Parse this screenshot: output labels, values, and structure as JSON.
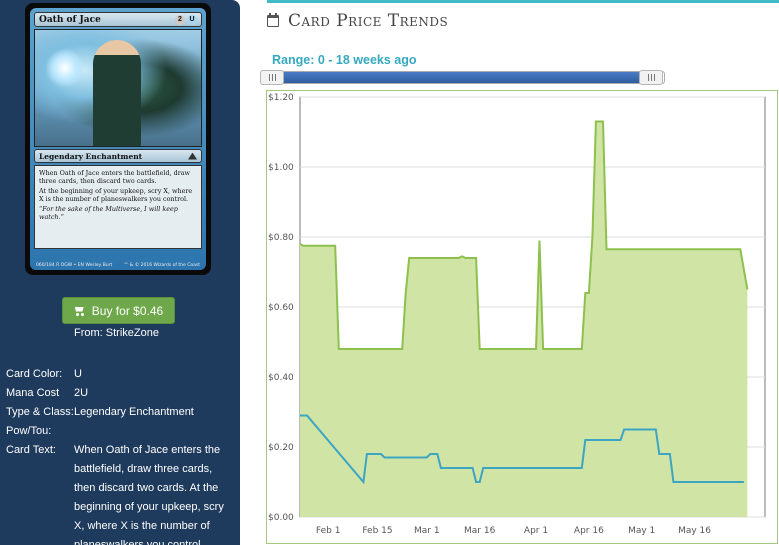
{
  "card": {
    "name": "Oath of Jace",
    "mana": [
      "2",
      "U"
    ],
    "type_line": "Legendary Enchantment",
    "rules_text": [
      "When Oath of Jace enters the battlefield, draw three cards, then discard two cards.",
      "At the beginning of your upkeep, scry X, where X is the number of planeswalkers you control."
    ],
    "flavor_text": "“For the sake of the Multiverse, I will keep watch.”",
    "footer_left": "060/184 R  OGW • EN  Wesley Burt",
    "footer_right": "™ & © 2016 Wizards of the Coast"
  },
  "purchase": {
    "buy_label": "Buy for $0.46",
    "from_label": "From: StrikeZone"
  },
  "details": [
    {
      "label": "Card Color:",
      "value": "U"
    },
    {
      "label": "Mana Cost",
      "value": "2U"
    },
    {
      "label": "Type & Class:",
      "value": "Legendary Enchantment"
    },
    {
      "label": "Pow/Tou:",
      "value": ""
    },
    {
      "label": "Card Text:",
      "value": "When Oath of Jace enters the battlefield, draw three cards, then discard two cards. At the beginning of your upkeep, scry X, where X is the number of planeswalkers you control."
    }
  ],
  "header": {
    "title": "Card Price Trends",
    "icon": "calendar-icon"
  },
  "range": {
    "label": "Range: 0 - 18 weeks ago",
    "start_weeks": 0,
    "end_weeks": 18
  },
  "colors": {
    "panel_bg": "#1e3a5c",
    "accent": "#40b8c6",
    "range_text": "#35a9c0",
    "buy_button": "#6ea84b",
    "area_fill": "#d0e4a6",
    "area_line": "#8ec04e",
    "low_line": "#3ba5c2"
  },
  "chart_data": {
    "type": "line",
    "title": "",
    "xlabel": "",
    "ylabel": "",
    "x_domain": [
      0,
      132
    ],
    "ylim": [
      0,
      1.2
    ],
    "y_ticks": [
      {
        "value": 0.0,
        "label": "$0.00"
      },
      {
        "value": 0.2,
        "label": "$0.20"
      },
      {
        "value": 0.4,
        "label": "$0.40"
      },
      {
        "value": 0.6,
        "label": "$0.60"
      },
      {
        "value": 0.8,
        "label": "$0.80"
      },
      {
        "value": 1.0,
        "label": "$1.00"
      },
      {
        "value": 1.2,
        "label": "$1.20"
      }
    ],
    "x_ticks": [
      {
        "x": 8,
        "label": "Feb 1"
      },
      {
        "x": 22,
        "label": "Feb 15"
      },
      {
        "x": 36,
        "label": "Mar 1"
      },
      {
        "x": 51,
        "label": "Mar 16"
      },
      {
        "x": 67,
        "label": "Apr 1"
      },
      {
        "x": 82,
        "label": "Apr 16"
      },
      {
        "x": 97,
        "label": "May 1"
      },
      {
        "x": 112,
        "label": "May 16"
      }
    ],
    "grid": {
      "horizontal": true,
      "vertical": false
    },
    "series": [
      {
        "role": "high",
        "style": "area",
        "points": [
          [
            0,
            0.78
          ],
          [
            1,
            0.775
          ],
          [
            10,
            0.775
          ],
          [
            11,
            0.48
          ],
          [
            29,
            0.48
          ],
          [
            30,
            0.64
          ],
          [
            31,
            0.74
          ],
          [
            45,
            0.74
          ],
          [
            46,
            0.745
          ],
          [
            47,
            0.74
          ],
          [
            50,
            0.74
          ],
          [
            51,
            0.48
          ],
          [
            67,
            0.48
          ],
          [
            68,
            0.79
          ],
          [
            69,
            0.48
          ],
          [
            80,
            0.48
          ],
          [
            81,
            0.64
          ],
          [
            82,
            0.64
          ],
          [
            83,
            0.8
          ],
          [
            84,
            1.13
          ],
          [
            86,
            1.13
          ],
          [
            87,
            0.765
          ],
          [
            125,
            0.765
          ],
          [
            127,
            0.65
          ]
        ]
      },
      {
        "role": "low",
        "style": "line",
        "points": [
          [
            0,
            0.29
          ],
          [
            2,
            0.29
          ],
          [
            18,
            0.1
          ],
          [
            19,
            0.18
          ],
          [
            23,
            0.18
          ],
          [
            24,
            0.17
          ],
          [
            36,
            0.17
          ],
          [
            37,
            0.18
          ],
          [
            39,
            0.18
          ],
          [
            40,
            0.14
          ],
          [
            49,
            0.14
          ],
          [
            50,
            0.1
          ],
          [
            51,
            0.1
          ],
          [
            52,
            0.14
          ],
          [
            80,
            0.14
          ],
          [
            81,
            0.22
          ],
          [
            91,
            0.22
          ],
          [
            92,
            0.25
          ],
          [
            101,
            0.25
          ],
          [
            102,
            0.18
          ],
          [
            105,
            0.18
          ],
          [
            106,
            0.1
          ],
          [
            126,
            0.1
          ]
        ]
      }
    ]
  }
}
